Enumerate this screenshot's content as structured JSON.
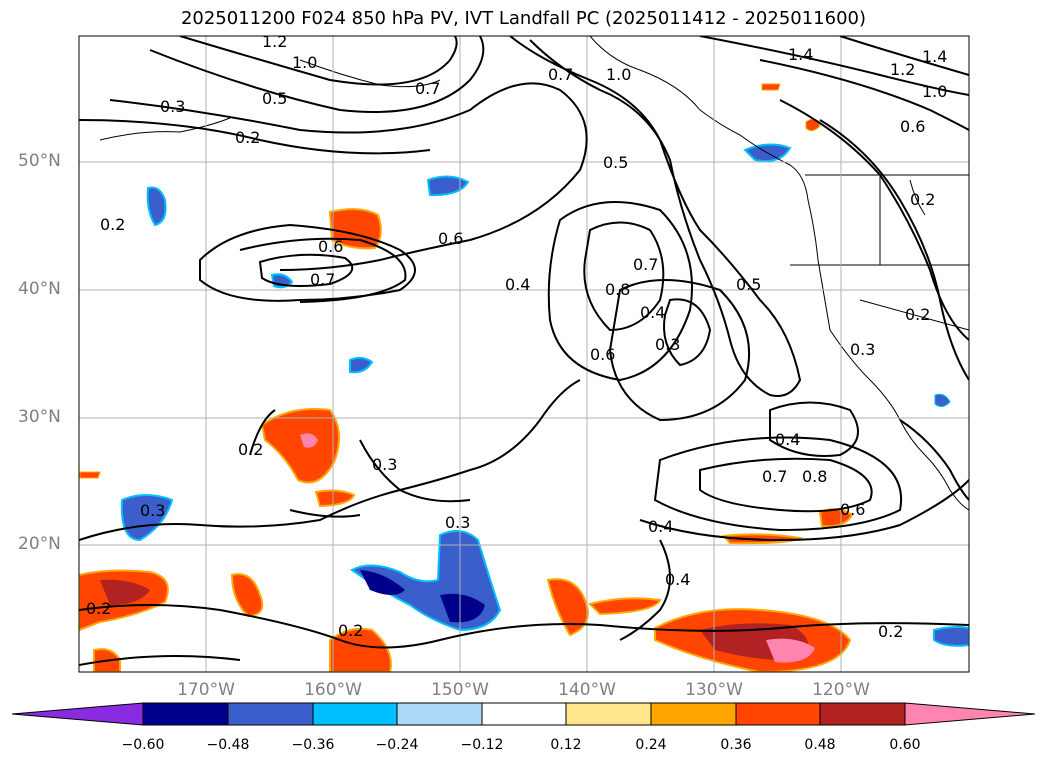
{
  "title": "2025011200 F024 850 hPa PV, IVT Landfall PC (2025011412 - 2025011600)",
  "lat_labels": [
    "50°N",
    "40°N",
    "30°N",
    "20°N"
  ],
  "lon_labels": [
    "170°W",
    "160°W",
    "150°W",
    "140°W",
    "130°W",
    "120°W"
  ],
  "colorbar": {
    "ticks": [
      "−0.60",
      "−0.48",
      "−0.36",
      "−0.24",
      "−0.12",
      "0.12",
      "0.24",
      "0.36",
      "0.48",
      "0.60"
    ],
    "colors": [
      "#8a2be2",
      "#00008b",
      "#3a5fcd",
      "#00bfff",
      "#add8f5",
      "#ffffff",
      "#ffe68a",
      "#ffa500",
      "#ff4500",
      "#b22222",
      "#ff85b0"
    ]
  },
  "contour_labels": [
    "1.2",
    "1.0",
    "0.3",
    "0.2",
    "0.5",
    "0.7",
    "0.2",
    "0.6",
    "0.7",
    "0.6",
    "0.4",
    "0.5",
    "0.8",
    "0.7",
    "0.4",
    "0.6",
    "0.3",
    "0.5",
    "0.7",
    "1.0",
    "1.4",
    "1.2",
    "1.0",
    "1.4",
    "0.6",
    "0.2",
    "0.3",
    "0.4",
    "0.7",
    "0.8",
    "0.6",
    "0.4",
    "0.4",
    "0.2",
    "0.3",
    "0.2",
    "0.3",
    "0.2",
    "0.3",
    "0.2",
    "0.2"
  ]
}
